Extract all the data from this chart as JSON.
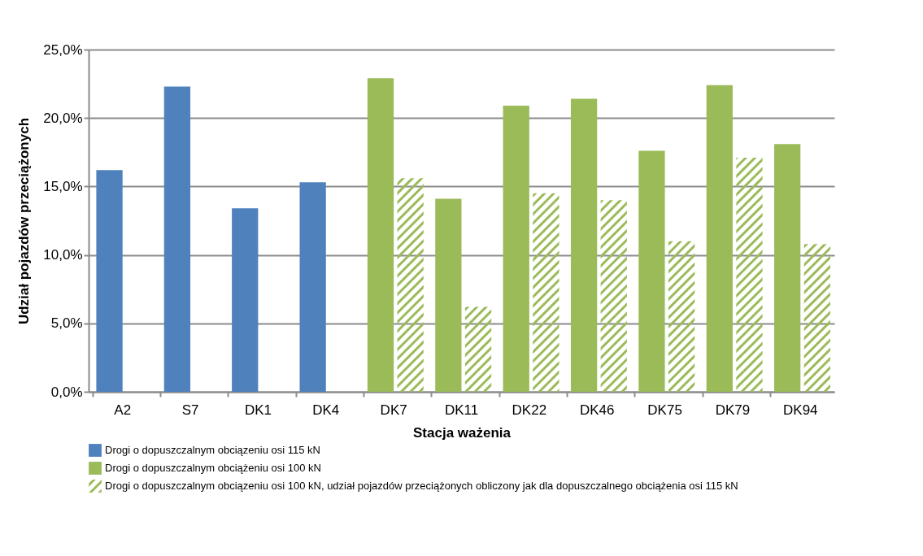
{
  "chart_data": {
    "type": "bar",
    "xlabel": "Stacja ważenia",
    "ylabel": "Udział pojazdów przeciążonych",
    "categories": [
      "A2",
      "S7",
      "DK1",
      "DK4",
      "DK7",
      "DK11",
      "DK22",
      "DK46",
      "DK75",
      "DK79",
      "DK94"
    ],
    "series": [
      {
        "name": "Drogi o dopuszczalnym obciązeniu osi 115 kN",
        "color": "#4f81bd",
        "values": [
          16.2,
          22.3,
          13.4,
          15.3,
          null,
          null,
          null,
          null,
          null,
          null,
          null
        ]
      },
      {
        "name": "Drogi o dopuszczalnym obciążeniu osi 100 kN",
        "color": "#9bbb59",
        "values": [
          null,
          null,
          null,
          null,
          22.9,
          14.1,
          20.9,
          21.4,
          17.6,
          22.4,
          18.1
        ]
      },
      {
        "name": "Drogi o dopuszczalnym obciązeniu osi 100 kN, udział pojazdów przeciążonych obliczony jak dla dopuszczalnego obciążenia osi 115 kN",
        "color": "#9bbb59",
        "values": [
          null,
          null,
          null,
          null,
          15.6,
          6.2,
          14.5,
          14.0,
          11.0,
          17.1,
          10.8
        ]
      }
    ],
    "ylim": [
      0,
      25
    ],
    "yticks": [
      {
        "value": 0,
        "label": "0,0%"
      },
      {
        "value": 5,
        "label": "5,0%"
      },
      {
        "value": 10,
        "label": "10,0%"
      },
      {
        "value": 15,
        "label": "15,0%"
      },
      {
        "value": 20,
        "label": "20,0%"
      },
      {
        "value": 25,
        "label": "25,0%"
      }
    ],
    "grid": "y",
    "legend": "bottom"
  }
}
